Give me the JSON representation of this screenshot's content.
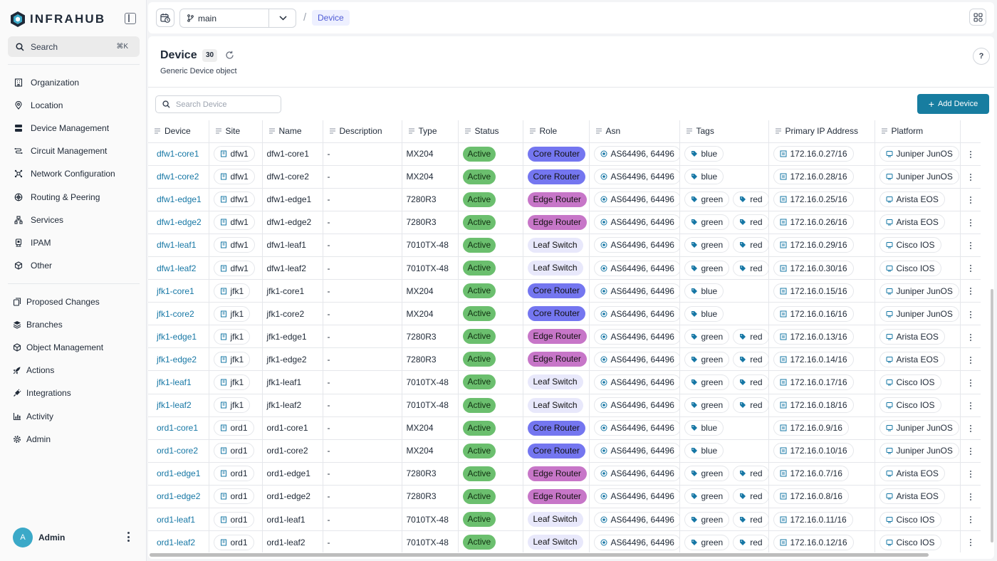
{
  "app": {
    "brand": "INFRAHUB",
    "search_label": "Search",
    "search_shortcut": "⌘K"
  },
  "sidebar": {
    "items": [
      {
        "label": "Organization",
        "icon": "building-icon"
      },
      {
        "label": "Location",
        "icon": "map-pin-icon"
      },
      {
        "label": "Device Management",
        "icon": "server-icon"
      },
      {
        "label": "Circuit Management",
        "icon": "circuit-icon"
      },
      {
        "label": "Network Configuration",
        "icon": "network-icon"
      },
      {
        "label": "Routing & Peering",
        "icon": "routing-icon"
      },
      {
        "label": "Services",
        "icon": "services-icon"
      },
      {
        "label": "IPAM",
        "icon": "ipam-icon"
      },
      {
        "label": "Other",
        "icon": "cube-icon"
      }
    ],
    "bottom_items": [
      {
        "label": "Proposed Changes",
        "icon": "proposed-changes-icon"
      },
      {
        "label": "Branches",
        "icon": "layers-icon"
      },
      {
        "label": "Object Management",
        "icon": "cube-icon"
      },
      {
        "label": "Actions",
        "icon": "rocket-icon"
      },
      {
        "label": "Integrations",
        "icon": "plug-icon"
      },
      {
        "label": "Activity",
        "icon": "chart-icon"
      },
      {
        "label": "Admin",
        "icon": "gear-icon"
      }
    ],
    "user": {
      "initial": "A",
      "name": "Admin"
    }
  },
  "topbar": {
    "branch": "main",
    "breadcrumb_separator": "/",
    "breadcrumb": "Device"
  },
  "page": {
    "title": "Device",
    "count": "30",
    "subtitle": "Generic Device object",
    "help": "?",
    "search_placeholder": "Search Device",
    "add_button": "Add Device"
  },
  "table": {
    "columns": [
      "Device",
      "Site",
      "Name",
      "Description",
      "Type",
      "Status",
      "Role",
      "Asn",
      "Tags",
      "Primary IP Address",
      "Platform"
    ],
    "rows": [
      {
        "device": "dfw1-core1",
        "site": "dfw1",
        "name": "dfw1-core1",
        "description": "-",
        "type": "MX204",
        "status": "Active",
        "role": "Core Router",
        "asn": "AS64496, 64496",
        "tags": [
          "blue"
        ],
        "ip": "172.16.0.27/16",
        "platform": "Juniper JunOS"
      },
      {
        "device": "dfw1-core2",
        "site": "dfw1",
        "name": "dfw1-core2",
        "description": "-",
        "type": "MX204",
        "status": "Active",
        "role": "Core Router",
        "asn": "AS64496, 64496",
        "tags": [
          "blue"
        ],
        "ip": "172.16.0.28/16",
        "platform": "Juniper JunOS"
      },
      {
        "device": "dfw1-edge1",
        "site": "dfw1",
        "name": "dfw1-edge1",
        "description": "-",
        "type": "7280R3",
        "status": "Active",
        "role": "Edge Router",
        "asn": "AS64496, 64496",
        "tags": [
          "green",
          "red"
        ],
        "ip": "172.16.0.25/16",
        "platform": "Arista EOS"
      },
      {
        "device": "dfw1-edge2",
        "site": "dfw1",
        "name": "dfw1-edge2",
        "description": "-",
        "type": "7280R3",
        "status": "Active",
        "role": "Edge Router",
        "asn": "AS64496, 64496",
        "tags": [
          "green",
          "red"
        ],
        "ip": "172.16.0.26/16",
        "platform": "Arista EOS"
      },
      {
        "device": "dfw1-leaf1",
        "site": "dfw1",
        "name": "dfw1-leaf1",
        "description": "-",
        "type": "7010TX-48",
        "status": "Active",
        "role": "Leaf Switch",
        "asn": "AS64496, 64496",
        "tags": [
          "green",
          "red"
        ],
        "ip": "172.16.0.29/16",
        "platform": "Cisco IOS"
      },
      {
        "device": "dfw1-leaf2",
        "site": "dfw1",
        "name": "dfw1-leaf2",
        "description": "-",
        "type": "7010TX-48",
        "status": "Active",
        "role": "Leaf Switch",
        "asn": "AS64496, 64496",
        "tags": [
          "green",
          "red"
        ],
        "ip": "172.16.0.30/16",
        "platform": "Cisco IOS"
      },
      {
        "device": "jfk1-core1",
        "site": "jfk1",
        "name": "jfk1-core1",
        "description": "-",
        "type": "MX204",
        "status": "Active",
        "role": "Core Router",
        "asn": "AS64496, 64496",
        "tags": [
          "blue"
        ],
        "ip": "172.16.0.15/16",
        "platform": "Juniper JunOS"
      },
      {
        "device": "jfk1-core2",
        "site": "jfk1",
        "name": "jfk1-core2",
        "description": "-",
        "type": "MX204",
        "status": "Active",
        "role": "Core Router",
        "asn": "AS64496, 64496",
        "tags": [
          "blue"
        ],
        "ip": "172.16.0.16/16",
        "platform": "Juniper JunOS"
      },
      {
        "device": "jfk1-edge1",
        "site": "jfk1",
        "name": "jfk1-edge1",
        "description": "-",
        "type": "7280R3",
        "status": "Active",
        "role": "Edge Router",
        "asn": "AS64496, 64496",
        "tags": [
          "green",
          "red"
        ],
        "ip": "172.16.0.13/16",
        "platform": "Arista EOS"
      },
      {
        "device": "jfk1-edge2",
        "site": "jfk1",
        "name": "jfk1-edge2",
        "description": "-",
        "type": "7280R3",
        "status": "Active",
        "role": "Edge Router",
        "asn": "AS64496, 64496",
        "tags": [
          "green",
          "red"
        ],
        "ip": "172.16.0.14/16",
        "platform": "Arista EOS"
      },
      {
        "device": "jfk1-leaf1",
        "site": "jfk1",
        "name": "jfk1-leaf1",
        "description": "-",
        "type": "7010TX-48",
        "status": "Active",
        "role": "Leaf Switch",
        "asn": "AS64496, 64496",
        "tags": [
          "green",
          "red"
        ],
        "ip": "172.16.0.17/16",
        "platform": "Cisco IOS"
      },
      {
        "device": "jfk1-leaf2",
        "site": "jfk1",
        "name": "jfk1-leaf2",
        "description": "-",
        "type": "7010TX-48",
        "status": "Active",
        "role": "Leaf Switch",
        "asn": "AS64496, 64496",
        "tags": [
          "green",
          "red"
        ],
        "ip": "172.16.0.18/16",
        "platform": "Cisco IOS"
      },
      {
        "device": "ord1-core1",
        "site": "ord1",
        "name": "ord1-core1",
        "description": "-",
        "type": "MX204",
        "status": "Active",
        "role": "Core Router",
        "asn": "AS64496, 64496",
        "tags": [
          "blue"
        ],
        "ip": "172.16.0.9/16",
        "platform": "Juniper JunOS"
      },
      {
        "device": "ord1-core2",
        "site": "ord1",
        "name": "ord1-core2",
        "description": "-",
        "type": "MX204",
        "status": "Active",
        "role": "Core Router",
        "asn": "AS64496, 64496",
        "tags": [
          "blue"
        ],
        "ip": "172.16.0.10/16",
        "platform": "Juniper JunOS"
      },
      {
        "device": "ord1-edge1",
        "site": "ord1",
        "name": "ord1-edge1",
        "description": "-",
        "type": "7280R3",
        "status": "Active",
        "role": "Edge Router",
        "asn": "AS64496, 64496",
        "tags": [
          "green",
          "red"
        ],
        "ip": "172.16.0.7/16",
        "platform": "Arista EOS"
      },
      {
        "device": "ord1-edge2",
        "site": "ord1",
        "name": "ord1-edge2",
        "description": "-",
        "type": "7280R3",
        "status": "Active",
        "role": "Edge Router",
        "asn": "AS64496, 64496",
        "tags": [
          "green",
          "red"
        ],
        "ip": "172.16.0.8/16",
        "platform": "Arista EOS"
      },
      {
        "device": "ord1-leaf1",
        "site": "ord1",
        "name": "ord1-leaf1",
        "description": "-",
        "type": "7010TX-48",
        "status": "Active",
        "role": "Leaf Switch",
        "asn": "AS64496, 64496",
        "tags": [
          "green",
          "red"
        ],
        "ip": "172.16.0.11/16",
        "platform": "Cisco IOS"
      },
      {
        "device": "ord1-leaf2",
        "site": "ord1",
        "name": "ord1-leaf2",
        "description": "-",
        "type": "7010TX-48",
        "status": "Active",
        "role": "Leaf Switch",
        "asn": "AS64496, 64496",
        "tags": [
          "green",
          "red"
        ],
        "ip": "172.16.0.12/16",
        "platform": "Cisco IOS"
      }
    ]
  },
  "colors": {
    "accent": "#177da0",
    "link": "#1677a5",
    "status_active": "#6bbf6e",
    "role_core": "#7476f0",
    "role_edge": "#c776c8",
    "role_leaf": "#e8e8fb"
  }
}
